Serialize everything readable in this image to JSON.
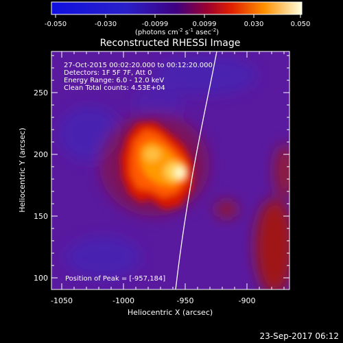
{
  "colorbar": {
    "ticks": [
      "-0.050",
      "-0.030",
      "-0.0099",
      "0.0099",
      "0.030",
      "0.050"
    ],
    "label_main": "(photons cm",
    "label_sup1": "-2",
    "label_mid1": " s",
    "label_sup2": "-1",
    "label_mid2": " asec",
    "label_sup3": "-2",
    "label_end": ")"
  },
  "plot": {
    "title": "Reconstructed RHESSI Image",
    "info": [
      "27-Oct-2015 00:02:20.000 to 00:12:20.000",
      "Detectors: 1F 5F 7F, Att 0",
      "Energy Range: 6.0 - 12.0 keV",
      "Clean     Total counts: 4.53E+04"
    ],
    "peak_text": "Position of Peak = [-957,184]",
    "xlabel": "Heliocentric X (arcsec)",
    "ylabel": "Heliocentric Y (arcsec)",
    "xticks": [
      {
        "label": "-1050",
        "value": -1050
      },
      {
        "label": "-1000",
        "value": -1000
      },
      {
        "label": "-950",
        "value": -950
      },
      {
        "label": "-900",
        "value": -900
      }
    ],
    "yticks": [
      {
        "label": "100",
        "value": 100
      },
      {
        "label": "150",
        "value": 150
      },
      {
        "label": "200",
        "value": 200
      },
      {
        "label": "250",
        "value": 250
      }
    ]
  },
  "footer": {
    "timestamp": "23-Sep-2017 06:12"
  },
  "colors": {
    "background": "#5a1aa0",
    "limb": "#ffffff"
  }
}
